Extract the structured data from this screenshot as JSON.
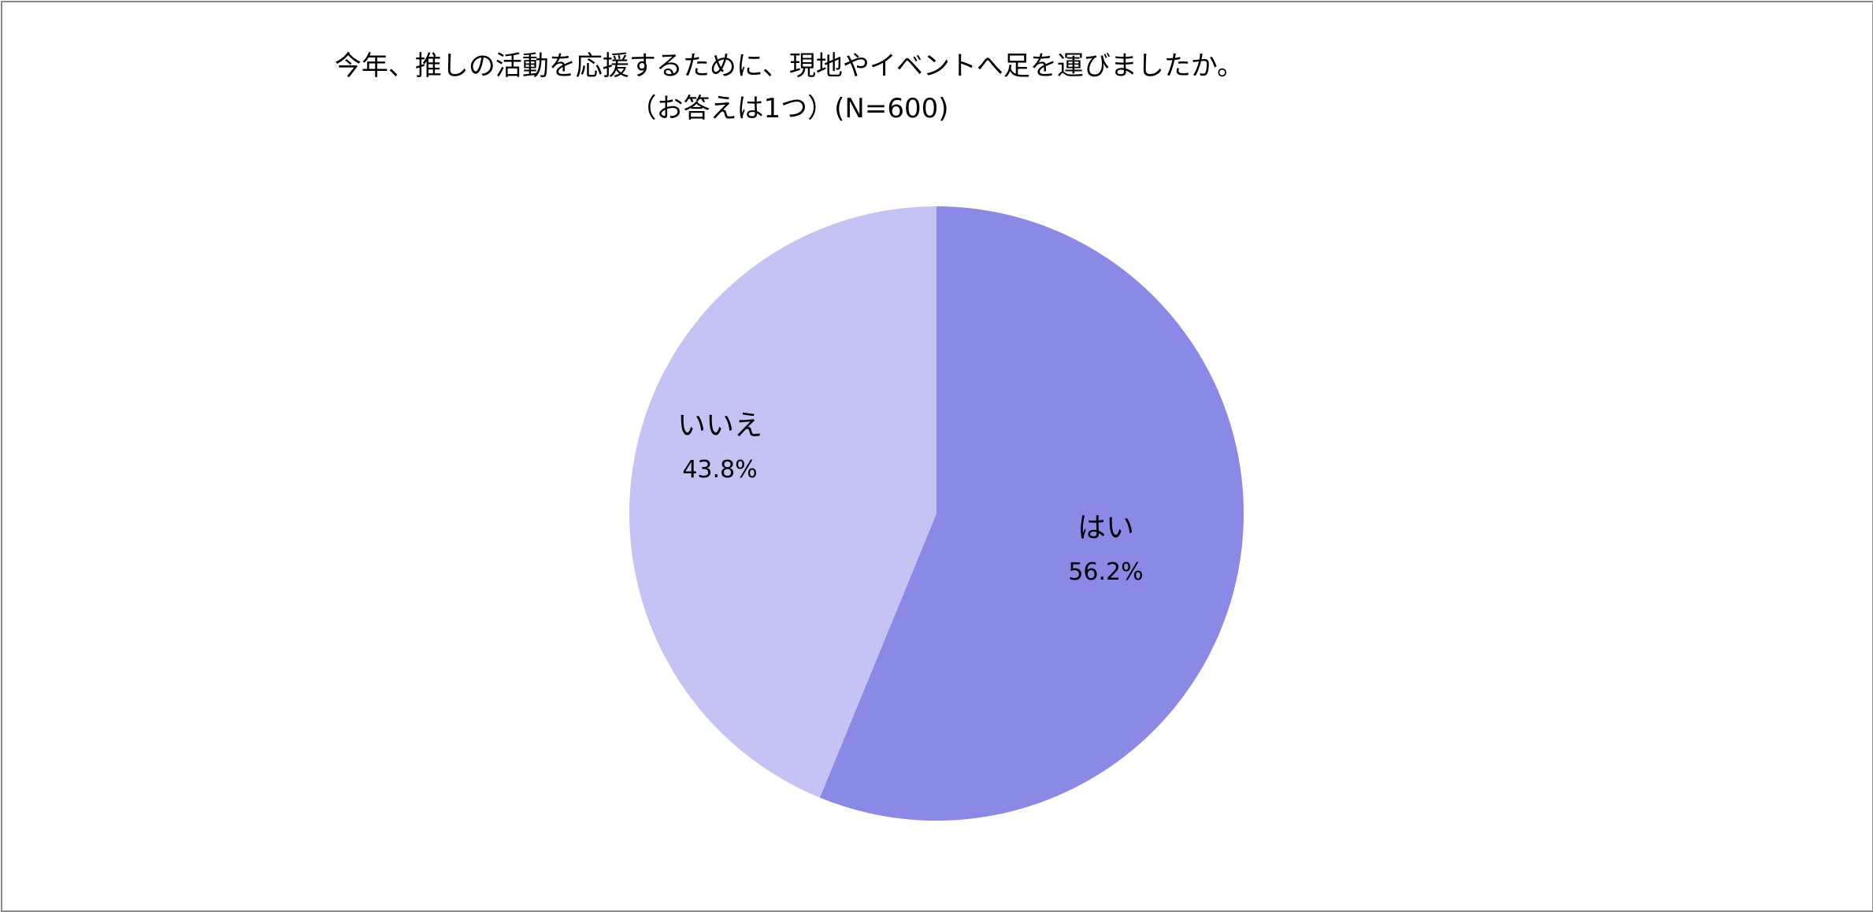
{
  "chart_data": {
    "type": "pie",
    "title_line1": "今年、推しの活動を応援するために、現地やイベントへ足を運びましたか。",
    "title_line2": "（お答えは1つ）(N=600)",
    "slices": [
      {
        "label": "はい",
        "value": 56.2,
        "value_label": "56.2%",
        "color": "#8b89e6"
      },
      {
        "label": "いいえ",
        "value": 43.8,
        "value_label": "43.8%",
        "color": "#c5c3f3"
      }
    ],
    "start_angle": "12 o'clock",
    "direction": "clockwise",
    "legend": "none"
  }
}
